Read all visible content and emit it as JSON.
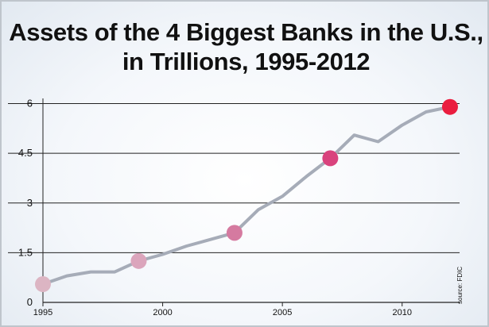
{
  "chart_data": {
    "type": "line",
    "title_lines": [
      "Assets of the 4 Biggest Banks in the U.S.,",
      "in Trillions, 1995-2012"
    ],
    "source": "source: FDIC",
    "xlabel": "",
    "ylabel": "",
    "xlim": [
      1995,
      2012.4
    ],
    "ylim": [
      0,
      6.3
    ],
    "y_ticks": [
      0,
      1.5,
      3,
      4.5,
      6
    ],
    "y_tick_labels": [
      "0",
      "1.5",
      "3",
      "4.5",
      "6"
    ],
    "x_ticks": [
      1995,
      2000,
      2005,
      2010
    ],
    "x_tick_labels": [
      "1995",
      "2000",
      "2005",
      "2010"
    ],
    "grid": "horizontal",
    "line_color": "#a6acb8",
    "series": [
      {
        "x": [
          1995,
          1996,
          1997,
          1998,
          1999,
          2000,
          2001,
          2002,
          2003,
          2004,
          2005,
          2006,
          2007,
          2008,
          2009,
          2010,
          2011,
          2012
        ],
        "values": [
          0.55,
          0.8,
          0.92,
          0.92,
          1.25,
          1.45,
          1.7,
          1.9,
          2.1,
          2.8,
          3.2,
          3.8,
          4.35,
          5.05,
          4.85,
          5.35,
          5.75,
          5.9
        ]
      }
    ],
    "highlights": [
      {
        "x": 1995,
        "y": 0.55,
        "color": "#dcb5c3"
      },
      {
        "x": 1999,
        "y": 1.25,
        "color": "#dba5bc"
      },
      {
        "x": 2003,
        "y": 2.1,
        "color": "#d57aa0"
      },
      {
        "x": 2007,
        "y": 4.35,
        "color": "#d9437d"
      },
      {
        "x": 2012,
        "y": 5.9,
        "color": "#ea1d3f"
      }
    ]
  }
}
